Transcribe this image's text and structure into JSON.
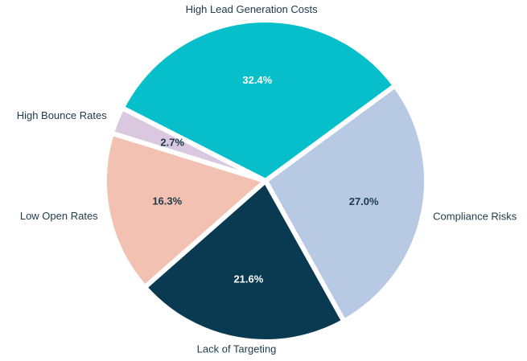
{
  "chart_data": {
    "type": "pie",
    "categories": [
      "High Lead Generation Costs",
      "Compliance Risks",
      "Lack of Targeting",
      "Low Open Rates",
      "High Bounce Rates"
    ],
    "values": [
      32.4,
      27.0,
      21.6,
      16.3,
      2.7
    ],
    "value_labels": [
      "32.4%",
      "27.0%",
      "21.6%",
      "16.3%",
      "2.7%"
    ],
    "colors": [
      "#07bfcb",
      "#b8c9e4",
      "#0a3a52",
      "#f2c1b1",
      "#d9c8e0"
    ]
  }
}
